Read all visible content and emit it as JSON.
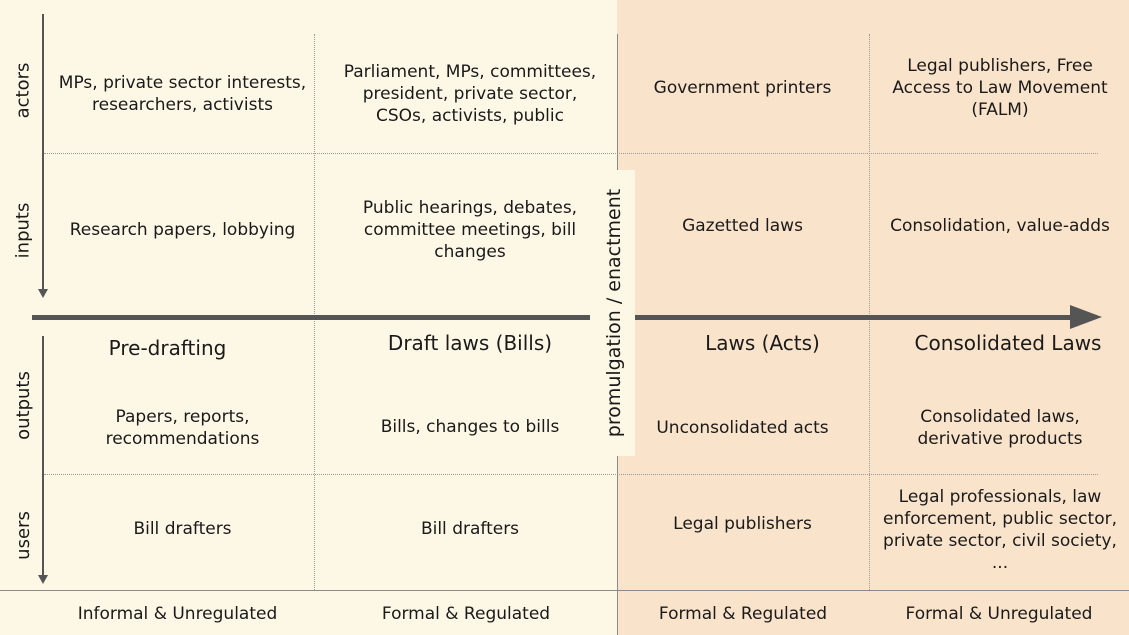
{
  "row_labels": {
    "actors": "actors",
    "inputs": "inputs",
    "outputs": "outputs",
    "users": "users"
  },
  "actors": {
    "pre_drafting": "MPs, private sector interests, researchers, activists",
    "draft_laws": "Parliament, MPs, committees, president, private sector, CSOs, activists, public",
    "laws": "Government printers",
    "consolidated": "Legal publishers, Free Access to Law Movement (FALM)"
  },
  "inputs": {
    "pre_drafting": "Research papers, lobbying",
    "draft_laws": "Public hearings, debates, committee meetings, bill changes",
    "laws": "Gazetted laws",
    "consolidated": "Consolidation, value-adds"
  },
  "phases": {
    "pre_drafting": "Pre-drafting",
    "draft_laws": "Draft laws (Bills)",
    "laws": "Laws (Acts)",
    "consolidated": "Consolidated Laws"
  },
  "milestone": "promulgation / enactment",
  "outputs": {
    "pre_drafting": "Papers, reports, recommendations",
    "draft_laws": "Bills, changes to bills",
    "laws": "Unconsolidated acts",
    "consolidated": "Consolidated laws, derivative products"
  },
  "users": {
    "pre_drafting": "Bill drafters",
    "draft_laws": "Bill drafters",
    "laws": "Legal publishers",
    "consolidated": "Legal professionals, law enforcement, public sector, private sector, civil society, ..."
  },
  "regulation": {
    "pre_drafting": "Informal & Unregulated",
    "draft_laws": "Formal & Regulated",
    "laws": "Formal & Regulated",
    "consolidated": "Formal & Unregulated"
  },
  "colors": {
    "left_background": "#fdf7e6",
    "right_background": "#f9e3cb",
    "arrow": "#555555"
  }
}
